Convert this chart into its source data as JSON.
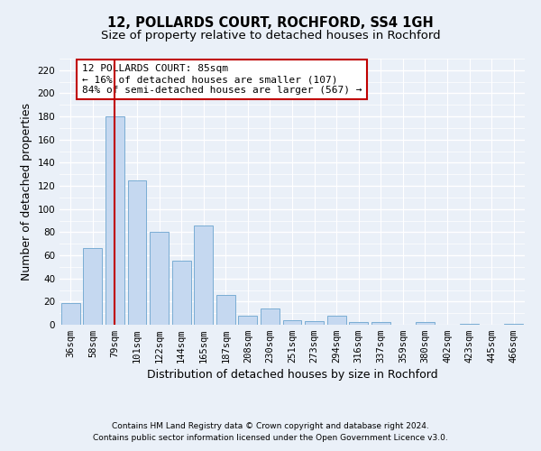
{
  "title": "12, POLLARDS COURT, ROCHFORD, SS4 1GH",
  "subtitle": "Size of property relative to detached houses in Rochford",
  "xlabel": "Distribution of detached houses by size in Rochford",
  "ylabel": "Number of detached properties",
  "categories": [
    "36sqm",
    "58sqm",
    "79sqm",
    "101sqm",
    "122sqm",
    "144sqm",
    "165sqm",
    "187sqm",
    "208sqm",
    "230sqm",
    "251sqm",
    "273sqm",
    "294sqm",
    "316sqm",
    "337sqm",
    "359sqm",
    "380sqm",
    "402sqm",
    "423sqm",
    "445sqm",
    "466sqm"
  ],
  "values": [
    19,
    66,
    180,
    125,
    80,
    55,
    86,
    26,
    8,
    14,
    4,
    3,
    8,
    2,
    2,
    0,
    2,
    0,
    1,
    0,
    1
  ],
  "bar_color": "#c5d8f0",
  "bar_edge_color": "#7aadd4",
  "vline_color": "#c00000",
  "vline_x": 2.0,
  "annotation_text": "12 POLLARDS COURT: 85sqm\n← 16% of detached houses are smaller (107)\n84% of semi-detached houses are larger (567) →",
  "annotation_box_color": "#ffffff",
  "annotation_box_edge_color": "#c00000",
  "ylim": [
    0,
    230
  ],
  "yticks": [
    0,
    20,
    40,
    60,
    80,
    100,
    120,
    140,
    160,
    180,
    200,
    220
  ],
  "background_color": "#eaf0f8",
  "grid_color": "#ffffff",
  "footer_line1": "Contains HM Land Registry data © Crown copyright and database right 2024.",
  "footer_line2": "Contains public sector information licensed under the Open Government Licence v3.0.",
  "title_fontsize": 10.5,
  "subtitle_fontsize": 9.5,
  "axis_label_fontsize": 9,
  "tick_fontsize": 7.5,
  "annotation_fontsize": 8
}
